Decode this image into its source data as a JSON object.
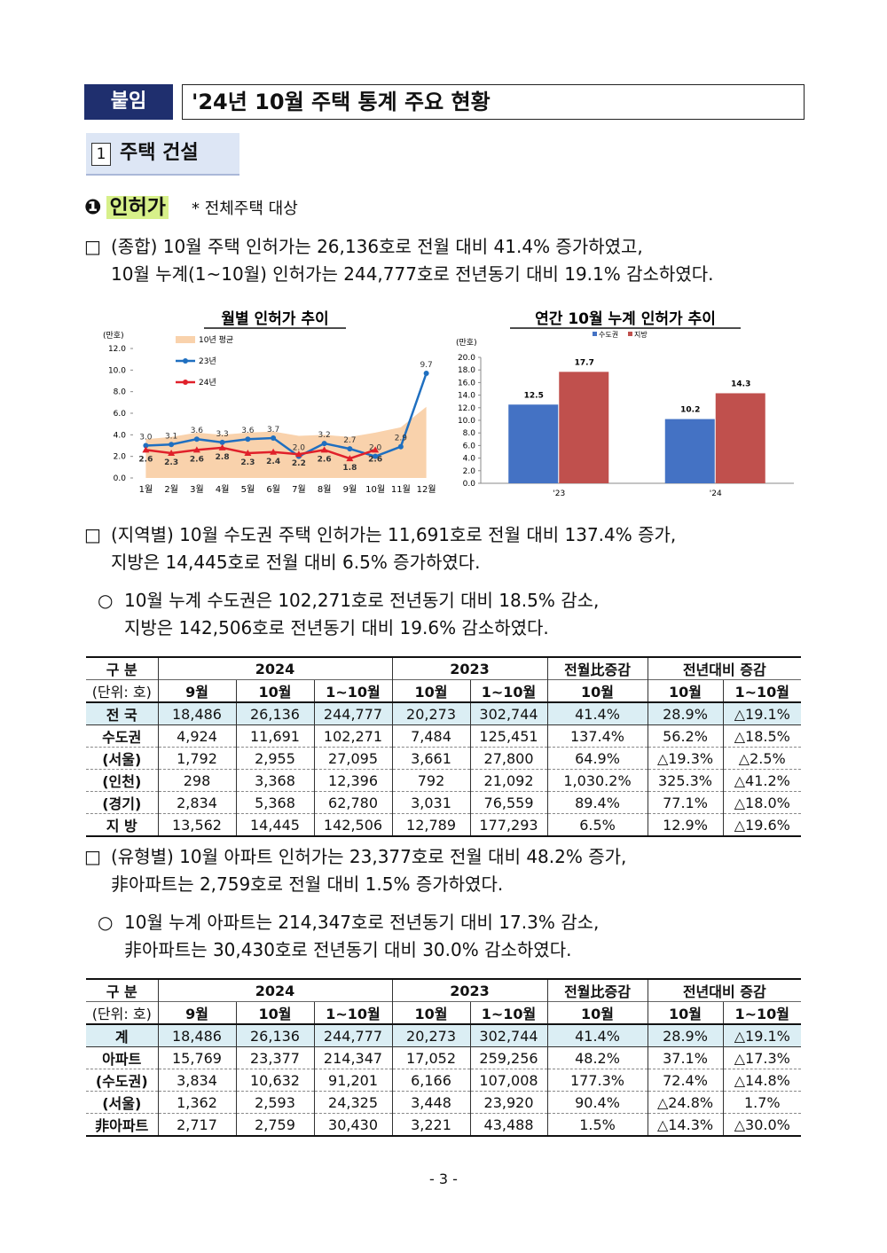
{
  "header": {
    "tag": "붙임",
    "title": "'24년 10월 주택 통계 주요 현황"
  },
  "section": {
    "number": "1",
    "title": "주택 건설"
  },
  "subsection": {
    "marker": "❶",
    "title": "인허가",
    "note": "* 전체주택 대상"
  },
  "paragraphs": [
    {
      "bullet": "□",
      "lines": [
        "(종합) 10월 주택 인허가는 26,136호로 전월 대비 41.4% 증가하였고,",
        "10월 누계(1~10월) 인허가는 244,777호로 전년동기 대비 19.1% 감소하였다."
      ]
    },
    {
      "bullet": "□",
      "lines": [
        "(지역별) 10월 수도권 주택 인허가는 11,691호로 전월 대비 137.4% 증가,",
        "지방은 14,445호로 전월 대비 6.5% 증가하였다."
      ]
    },
    {
      "bullet": "○",
      "lines": [
        "10월 누계 수도권은 102,271호로 전년동기 대비 18.5% 감소,",
        "지방은 142,506호로 전년동기 대비 19.6% 감소하였다."
      ]
    },
    {
      "bullet": "□",
      "lines": [
        "(유형별) 10월 아파트 인허가는 23,377호로 전월 대비 48.2% 증가,",
        "非아파트는 2,759호로 전월 대비 1.5% 증가하였다."
      ]
    },
    {
      "bullet": "○",
      "lines": [
        "10월 누계 아파트는 214,347호로 전년동기 대비 17.3% 감소,",
        "非아파트는 30,430호로 전년동기 대비 30.0% 감소하였다."
      ]
    }
  ],
  "chart_data": [
    {
      "type": "line",
      "title": "월별 인허가 추이",
      "y_unit": "(만호)",
      "categories": [
        "1월",
        "2월",
        "3월",
        "4월",
        "5월",
        "6월",
        "7월",
        "8월",
        "9월",
        "10월",
        "11월",
        "12월"
      ],
      "ylim": [
        0,
        12
      ],
      "yticks": [
        {
          "value": 0,
          "label": "0.0"
        },
        {
          "value": 2,
          "label": "2.0"
        },
        {
          "value": 4,
          "label": "4.0"
        },
        {
          "value": 6,
          "label": "6.0"
        },
        {
          "value": 8,
          "label": "8.0"
        },
        {
          "value": 10,
          "label": "10.0"
        },
        {
          "value": 12,
          "label": "12.0"
        }
      ],
      "series": [
        {
          "name": "10년 평균",
          "type": "area",
          "color": "#f9d2ac",
          "values": [
            3.6,
            3.8,
            4.2,
            4.0,
            4.2,
            4.3,
            3.9,
            4.0,
            3.8,
            4.2,
            4.7,
            6.6
          ]
        },
        {
          "name": "23년",
          "type": "line",
          "color": "#1f6fc0",
          "values": [
            3.0,
            3.1,
            3.6,
            3.3,
            3.6,
            3.7,
            2.0,
            3.2,
            2.7,
            2.0,
            2.9,
            9.7
          ],
          "value_labels": [
            "3.0",
            "3.1",
            "3.6",
            "3.3",
            "3.6",
            "3.7",
            "2.0",
            "3.2",
            "2.7",
            "2.0",
            "2.9",
            "9.7"
          ]
        },
        {
          "name": "24년",
          "type": "line",
          "color": "#e0202a",
          "values": [
            2.6,
            2.3,
            2.6,
            2.8,
            2.3,
            2.4,
            2.2,
            2.6,
            1.8,
            2.6,
            null,
            null
          ],
          "value_labels": [
            "2.6",
            "2.3",
            "2.6",
            "2.8",
            "2.3",
            "2.4",
            "2.2",
            "2.6",
            "1.8",
            "2.6",
            null,
            null
          ]
        }
      ]
    },
    {
      "type": "bar",
      "title": "연간 10월 누계 인허가 추이",
      "y_unit": "(만호)",
      "categories": [
        "'23",
        "'24"
      ],
      "ylim": [
        0,
        20
      ],
      "yticks": [
        {
          "value": 0,
          "label": "0.0"
        },
        {
          "value": 2,
          "label": "2.0"
        },
        {
          "value": 4,
          "label": "4.0"
        },
        {
          "value": 6,
          "label": "6.0"
        },
        {
          "value": 8,
          "label": "8.0"
        },
        {
          "value": 10,
          "label": "10.0"
        },
        {
          "value": 12,
          "label": "12.0"
        },
        {
          "value": 14,
          "label": "14.0"
        },
        {
          "value": 16,
          "label": "16.0"
        },
        {
          "value": 18,
          "label": "18.0"
        },
        {
          "value": 20,
          "label": "20.0"
        }
      ],
      "series": [
        {
          "name": "수도권",
          "color": "#4472c4",
          "values": [
            12.5,
            10.2
          ]
        },
        {
          "name": "지방",
          "color": "#c0504d",
          "values": [
            17.7,
            14.3
          ]
        }
      ]
    }
  ],
  "tables": [
    {
      "head": [
        [
          "구 분",
          "2024",
          "2023",
          "전월比증감",
          "전년대비 증감"
        ],
        [
          "(단위: 호)",
          "9월",
          "10월",
          "1~10월",
          "10월",
          "1~10월",
          "10월",
          "10월",
          "1~10월"
        ]
      ],
      "rows": [
        [
          "전 국",
          "18,486",
          "26,136",
          "244,777",
          "20,273",
          "302,744",
          "41.4%",
          "28.9%",
          "△19.1%"
        ],
        [
          "수도권",
          "4,924",
          "11,691",
          "102,271",
          "7,484",
          "125,451",
          "137.4%",
          "56.2%",
          "△18.5%"
        ],
        [
          "(서울)",
          "1,792",
          "2,955",
          "27,095",
          "3,661",
          "27,800",
          "64.9%",
          "△19.3%",
          "△2.5%"
        ],
        [
          "(인천)",
          "298",
          "3,368",
          "12,396",
          "792",
          "21,092",
          "1,030.2%",
          "325.3%",
          "△41.2%"
        ],
        [
          "(경기)",
          "2,834",
          "5,368",
          "62,780",
          "3,031",
          "76,559",
          "89.4%",
          "77.1%",
          "△18.0%"
        ],
        [
          "지 방",
          "13,562",
          "14,445",
          "142,506",
          "12,789",
          "177,293",
          "6.5%",
          "12.9%",
          "△19.6%"
        ]
      ]
    },
    {
      "head": [
        [
          "구 분",
          "2024",
          "2023",
          "전월比증감",
          "전년대비 증감"
        ],
        [
          "(단위: 호)",
          "9월",
          "10월",
          "1~10월",
          "10월",
          "1~10월",
          "10월",
          "10월",
          "1~10월"
        ]
      ],
      "rows": [
        [
          "계",
          "18,486",
          "26,136",
          "244,777",
          "20,273",
          "302,744",
          "41.4%",
          "28.9%",
          "△19.1%"
        ],
        [
          "아파트",
          "15,769",
          "23,377",
          "214,347",
          "17,052",
          "259,256",
          "48.2%",
          "37.1%",
          "△17.3%"
        ],
        [
          "(수도권)",
          "3,834",
          "10,632",
          "91,201",
          "6,166",
          "107,008",
          "177.3%",
          "72.4%",
          "△14.8%"
        ],
        [
          "(서울)",
          "1,362",
          "2,593",
          "24,325",
          "3,448",
          "23,920",
          "90.4%",
          "△24.8%",
          "1.7%"
        ],
        [
          "非아파트",
          "2,717",
          "2,759",
          "30,430",
          "3,221",
          "43,488",
          "1.5%",
          "△14.3%",
          "△30.0%"
        ]
      ]
    }
  ],
  "footer": "- 3 -"
}
